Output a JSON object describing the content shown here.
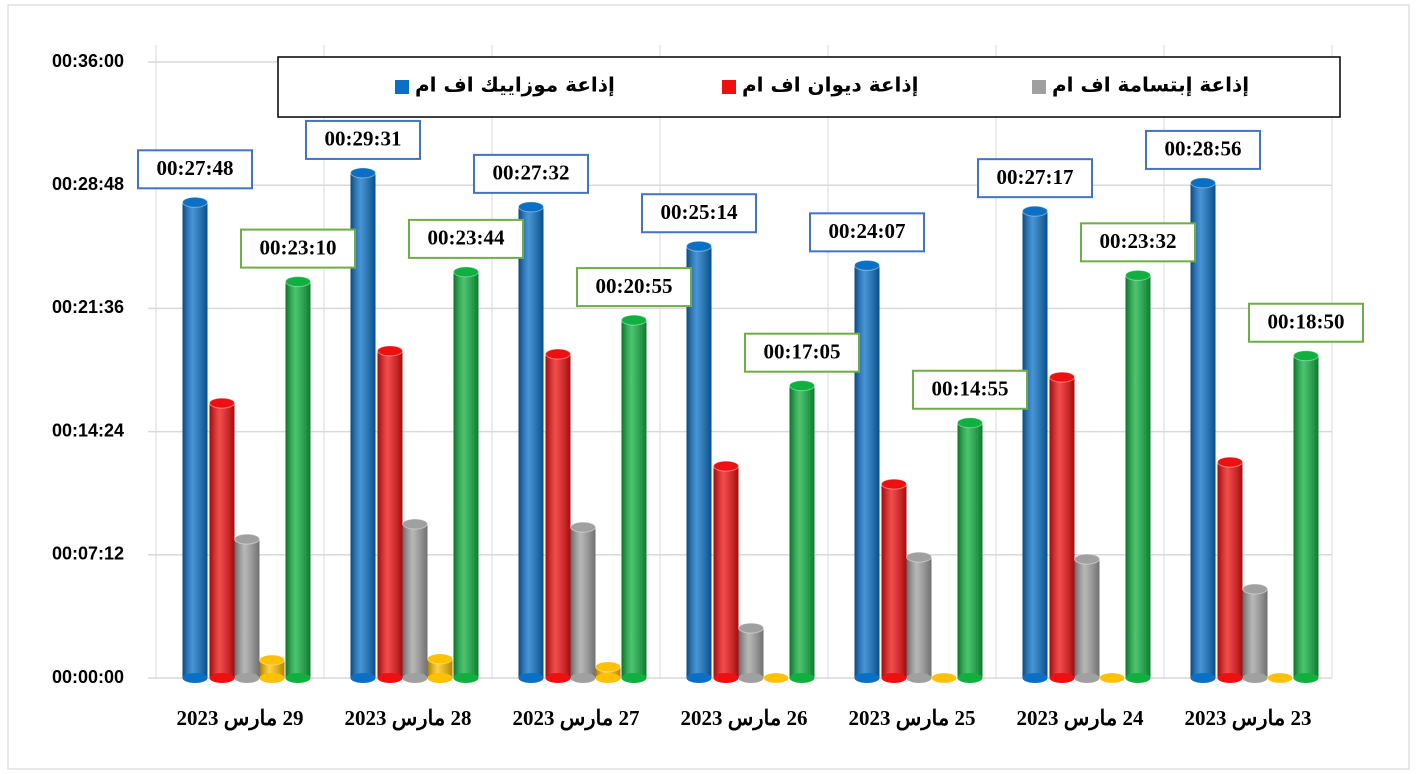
{
  "chart_data": {
    "type": "bar",
    "categories": [
      "29 مارس 2023",
      "28 مارس 2023",
      "27 مارس 2023",
      "26 مارس 2023",
      "25 مارس 2023",
      "24 مارس 2023",
      "23 مارس 2023"
    ],
    "series": [
      {
        "name": "إذاعة موزاييك اف ام",
        "color": "#0a70c6",
        "values": [
          1668,
          1771,
          1652,
          1514,
          1447,
          1637,
          1736
        ],
        "value_labels": [
          "00:27:48",
          "00:29:31",
          "00:27:32",
          "00:25:14",
          "00:24:07",
          "00:27:17",
          "00:28:56"
        ],
        "label_border": "#4472c4"
      },
      {
        "name": "إذاعة ديوان اف ام",
        "color": "#ee1010",
        "values": [
          964,
          1147,
          1136,
          743,
          680,
          1055,
          757
        ]
      },
      {
        "name": "إذاعة إبتسامة اف ام",
        "color": "#a0a0a0",
        "values": [
          487,
          540,
          529,
          175,
          424,
          417,
          312
        ]
      },
      {
        "color": "#ffc000",
        "values": [
          63,
          67,
          39,
          0,
          0,
          0,
          0
        ]
      },
      {
        "color": "#10b040",
        "values": [
          1390,
          1424,
          1255,
          1025,
          895,
          1412,
          1130
        ],
        "value_labels": [
          "00:23:10",
          "00:23:44",
          "00:20:55",
          "00:17:05",
          "00:14:55",
          "00:23:32",
          "00:18:50"
        ],
        "label_border": "#70ad47"
      }
    ],
    "ylim": [
      0,
      2160
    ],
    "yticks": [
      {
        "value": 0,
        "label": "00:00:00"
      },
      {
        "value": 432,
        "label": "00:07:12"
      },
      {
        "value": 864,
        "label": "00:14:24"
      },
      {
        "value": 1296,
        "label": "00:21:36"
      },
      {
        "value": 1728,
        "label": "00:28:48"
      },
      {
        "value": 2160,
        "label": "00:36:00"
      }
    ],
    "grid": true,
    "legend": "top"
  }
}
